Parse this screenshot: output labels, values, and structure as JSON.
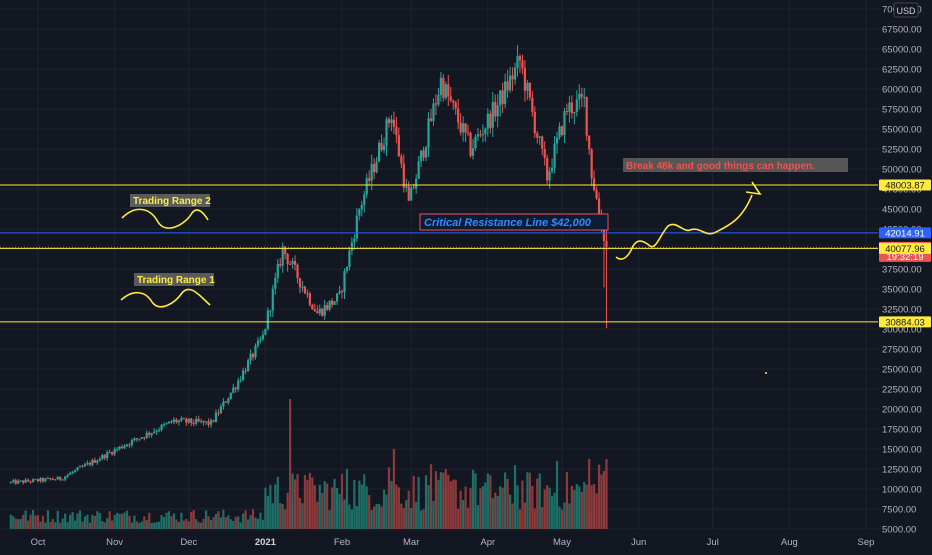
{
  "currency_button": "USD",
  "colors": {
    "background": "#131722",
    "grid": "#1f2330",
    "up": "#26a69a",
    "down": "#ef5350",
    "up_volume": "#1e6f68",
    "down_volume": "#8e3a3b",
    "yellow": "#ffeb3b",
    "blue": "#2962ff",
    "axis_text": "#b2b5be"
  },
  "chart_data": {
    "type": "candlestick",
    "x_axis": {
      "ticks": [
        "Oct",
        "Nov",
        "Dec",
        "2021",
        "Feb",
        "Mar",
        "Apr",
        "May",
        "Jun",
        "Jul",
        "Aug",
        "Sep"
      ]
    },
    "y_axis": {
      "scale": "linear",
      "range": [
        4000,
        70500
      ],
      "ticks": [
        "70000.00",
        "67500.00",
        "65000.00",
        "62500.00",
        "60000.00",
        "57500.00",
        "55000.00",
        "52500.00",
        "50000.00",
        "47500.00",
        "45000.00",
        "42500.00",
        "40000.00",
        "37500.00",
        "35000.00",
        "32500.00",
        "30000.00",
        "27500.00",
        "25000.00",
        "22500.00",
        "20000.00",
        "17500.00",
        "15000.00",
        "12500.00",
        "10000.00",
        "7500.00",
        "5000.00"
      ]
    },
    "price_path": [
      [
        "2020-09-20",
        10800
      ],
      [
        "2020-10-10",
        11300
      ],
      [
        "2020-10-20",
        12900
      ],
      [
        "2020-11-05",
        15500
      ],
      [
        "2020-11-25",
        18500
      ],
      [
        "2020-12-10",
        18200
      ],
      [
        "2020-12-20",
        23000
      ],
      [
        "2020-12-31",
        29000
      ],
      [
        "2021-01-08",
        40000
      ],
      [
        "2021-01-15",
        36000
      ],
      [
        "2021-01-22",
        32000
      ],
      [
        "2021-01-31",
        34000
      ],
      [
        "2021-02-08",
        45000
      ],
      [
        "2021-02-21",
        57000
      ],
      [
        "2021-02-28",
        45500
      ],
      [
        "2021-03-13",
        61000
      ],
      [
        "2021-03-25",
        52500
      ],
      [
        "2021-04-05",
        58000
      ],
      [
        "2021-04-14",
        63500
      ],
      [
        "2021-04-25",
        49000
      ],
      [
        "2021-05-03",
        57500
      ],
      [
        "2021-05-10",
        58500
      ],
      [
        "2021-05-13",
        49500
      ],
      [
        "2021-05-17",
        43000
      ],
      [
        "2021-05-19",
        39000
      ]
    ],
    "levels": [
      {
        "value": 48003.87,
        "label": "48003.87",
        "color": "#ffeb3b",
        "style": "solid"
      },
      {
        "value": 42014.91,
        "label": "42014.91",
        "color": "#2962ff",
        "style": "solid"
      },
      {
        "value": 40209.63,
        "label": "40209.63",
        "sublabel": "19:32:19",
        "color": "#ef5350",
        "style": "dotted"
      },
      {
        "value": 40077.96,
        "label": "40077.96",
        "color": "#ffeb3b",
        "style": "solid"
      },
      {
        "value": 30884.03,
        "label": "30884.03",
        "color": "#ffeb3b",
        "style": "solid"
      }
    ],
    "annotations": [
      {
        "id": "trading-range-2",
        "text": "Trading Range 2"
      },
      {
        "id": "trading-range-1",
        "text": "Trading Range 1"
      },
      {
        "id": "critical-resistance",
        "text": "Critical Resistance Line $42,000"
      },
      {
        "id": "break-48k",
        "text": "Break 48k and good things can happen."
      }
    ],
    "volume": "relative bars, larger from Jan 2021, spike near late May"
  }
}
